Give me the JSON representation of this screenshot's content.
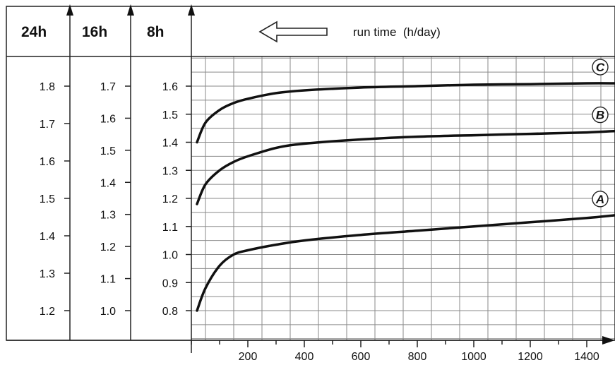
{
  "header": {
    "columns": [
      "24h",
      "16h",
      "8h"
    ],
    "run_time_label": "run time  (h/day)",
    "arrow_icon": "left-arrow-icon"
  },
  "chart_data": {
    "type": "line",
    "title": "",
    "xlabel": "",
    "ylabel": "",
    "x_ticks": [
      200,
      400,
      600,
      800,
      1000,
      1200,
      1400
    ],
    "xlim": [
      0,
      1500
    ],
    "grid": true,
    "y_axes": [
      {
        "name": "24h",
        "ticks": [
          "1.8",
          "1.7",
          "1.6",
          "1.5",
          "1.4",
          "1.3",
          "1.2"
        ],
        "range": [
          1.2,
          1.8
        ]
      },
      {
        "name": "16h",
        "ticks": [
          "1.7",
          "1.6",
          "1.5",
          "1.4",
          "1.3",
          "1.2",
          "1.1",
          "1.0"
        ],
        "range": [
          1.0,
          1.7
        ]
      },
      {
        "name": "8h",
        "ticks": [
          "1.6",
          "1.5",
          "1.4",
          "1.3",
          "1.2",
          "1.1",
          "1.0",
          "0.9",
          "0.8"
        ],
        "range": [
          0.8,
          1.6
        ]
      }
    ],
    "series": [
      {
        "name": "C",
        "x": [
          20,
          50,
          100,
          150,
          200,
          300,
          400,
          600,
          800,
          1000,
          1200,
          1400,
          1500
        ],
        "y": [
          1.4,
          1.47,
          1.515,
          1.54,
          1.555,
          1.575,
          1.585,
          1.595,
          1.6,
          1.605,
          1.607,
          1.61,
          1.61
        ]
      },
      {
        "name": "B",
        "x": [
          20,
          50,
          100,
          150,
          200,
          300,
          400,
          600,
          800,
          1000,
          1200,
          1400,
          1500
        ],
        "y": [
          1.18,
          1.25,
          1.3,
          1.33,
          1.35,
          1.38,
          1.395,
          1.41,
          1.42,
          1.425,
          1.43,
          1.435,
          1.44
        ]
      },
      {
        "name": "A",
        "x": [
          20,
          50,
          100,
          150,
          200,
          300,
          400,
          600,
          800,
          1000,
          1200,
          1400,
          1500
        ],
        "y": [
          0.8,
          0.88,
          0.96,
          1.0,
          1.015,
          1.035,
          1.05,
          1.07,
          1.085,
          1.1,
          1.115,
          1.13,
          1.14
        ]
      }
    ]
  }
}
